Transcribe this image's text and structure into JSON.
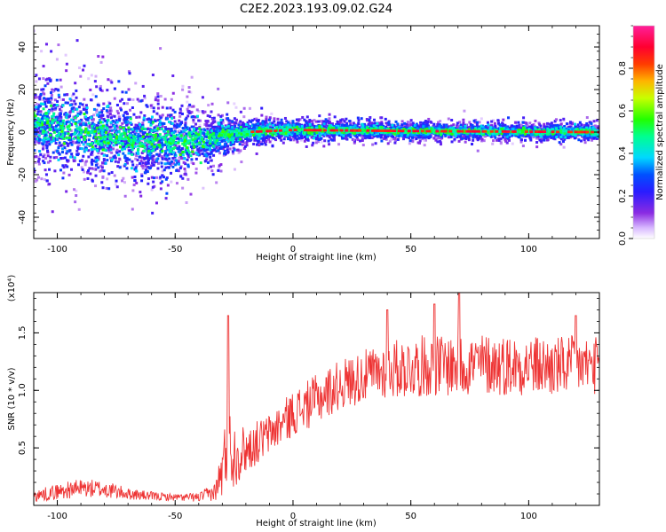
{
  "title": "C2E2.2023.193.09.02.G24",
  "chart_data": [
    {
      "type": "heatmap",
      "name": "spectrogram",
      "xlabel": "Height of straight line (km)",
      "ylabel": "Frequency (Hz)",
      "xlim": [
        -110,
        130
      ],
      "ylim": [
        -50,
        50
      ],
      "xticks": [
        -100,
        -50,
        0,
        50,
        100
      ],
      "yticks": [
        -40,
        -20,
        0,
        20,
        40
      ],
      "xtick_labels": [
        "-100",
        "-50",
        "0",
        "50",
        "100"
      ],
      "ytick_labels": [
        "-40",
        "-20",
        "0",
        "20",
        "40"
      ],
      "colorbar": {
        "label": "Normalized spectral amplitude",
        "range": [
          0,
          1
        ],
        "ticks": [
          0.0,
          0.2,
          0.4,
          0.6,
          0.8
        ],
        "tick_labels": [
          "0.0",
          "0.2",
          "0.4",
          "0.6",
          "0.8"
        ],
        "colormap": "rainbow (white-violet-blue-cyan-green-yellow-red-magenta)"
      },
      "description_points": [
        {
          "height": -110,
          "center_freq": 4,
          "spread": 10
        },
        {
          "height": -90,
          "center_freq": 0,
          "spread": 11
        },
        {
          "height": -70,
          "center_freq": -3,
          "spread": 11
        },
        {
          "height": -50,
          "center_freq": -5,
          "spread": 10
        },
        {
          "height": -35,
          "center_freq": -3,
          "spread": 6
        },
        {
          "height": -20,
          "center_freq": 0,
          "spread": 3
        },
        {
          "height": 0,
          "center_freq": 1,
          "spread": 2.5
        },
        {
          "height": 50,
          "center_freq": 0.5,
          "spread": 2
        },
        {
          "height": 130,
          "center_freq": 0,
          "spread": 2
        }
      ]
    },
    {
      "type": "line",
      "name": "snr",
      "xlabel": "Height of straight line (km)",
      "ylabel": "SNR (10 * v/v)",
      "ylabel_multiplier": "(x10⁴)",
      "xlim": [
        -110,
        130
      ],
      "ylim": [
        0,
        1.85
      ],
      "xticks": [
        -100,
        -50,
        0,
        50,
        100
      ],
      "yticks": [
        0.5,
        1.0,
        1.5
      ],
      "xtick_labels": [
        "-100",
        "-50",
        "0",
        "50",
        "100"
      ],
      "ytick_labels": [
        "0.5",
        "1.0",
        "1.5"
      ],
      "series_color": "#ee3333",
      "envelope": {
        "x": [
          -110,
          -100,
          -90,
          -80,
          -70,
          -60,
          -50,
          -40,
          -33,
          -30,
          -28,
          -25,
          -20,
          -10,
          0,
          10,
          20,
          30,
          40,
          50,
          60,
          70,
          80,
          90,
          100,
          110,
          120,
          130
        ],
        "mean": [
          0.08,
          0.12,
          0.15,
          0.14,
          0.1,
          0.08,
          0.07,
          0.07,
          0.12,
          0.3,
          0.5,
          0.45,
          0.48,
          0.62,
          0.8,
          0.92,
          1.05,
          1.12,
          1.18,
          1.2,
          1.22,
          1.22,
          1.23,
          1.22,
          1.22,
          1.2,
          1.22,
          1.22
        ],
        "amp": [
          0.05,
          0.07,
          0.08,
          0.08,
          0.05,
          0.04,
          0.03,
          0.04,
          0.08,
          0.25,
          0.4,
          0.3,
          0.2,
          0.18,
          0.2,
          0.22,
          0.22,
          0.23,
          0.25,
          0.27,
          0.27,
          0.28,
          0.27,
          0.27,
          0.26,
          0.27,
          0.26,
          0.25
        ]
      },
      "spikes": [
        {
          "x": -27.5,
          "y": 1.65
        },
        {
          "x": 40,
          "y": 1.7
        },
        {
          "x": 60,
          "y": 1.75
        },
        {
          "x": 70.5,
          "y": 1.85
        },
        {
          "x": 120,
          "y": 1.65
        }
      ]
    }
  ]
}
